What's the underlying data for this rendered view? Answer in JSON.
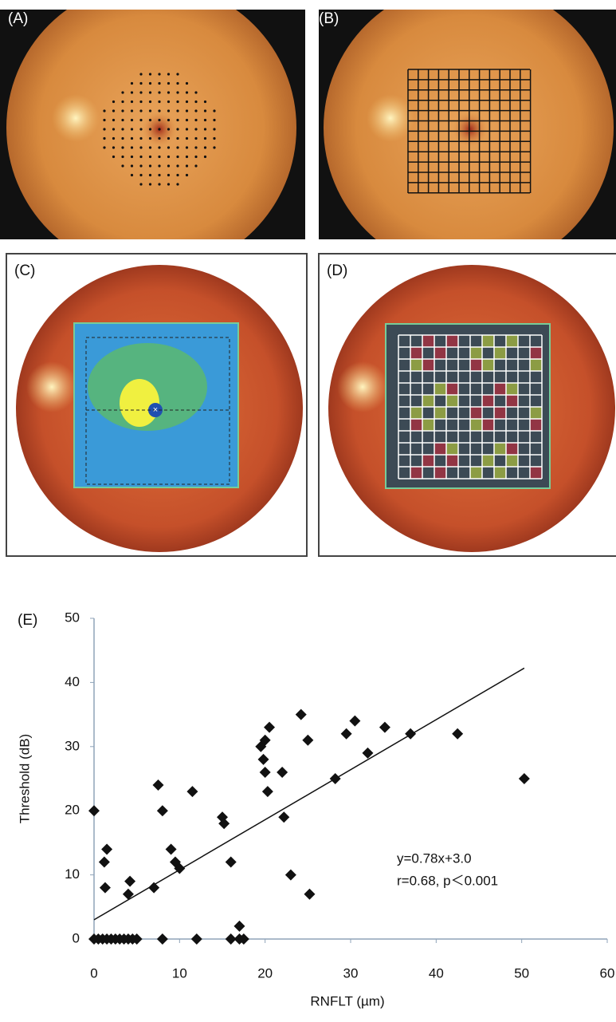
{
  "panel_labels": [
    "(A)",
    "(B)",
    "(C)",
    "(D)"
  ],
  "chart_data": {
    "type": "scatter",
    "panel_label": "(E)",
    "xlabel": "RNFLT (µm)",
    "ylabel": "Threshold (dB)",
    "x": [
      0,
      0,
      0.5,
      1,
      1.5,
      2,
      2.5,
      3,
      3.5,
      4,
      4.5,
      5,
      1.2,
      1.5,
      1.3,
      4,
      4.2,
      7,
      7.5,
      8,
      8,
      9,
      9.5,
      10,
      11.5,
      12,
      15,
      15.2,
      16,
      16,
      17,
      17,
      17.5,
      19.5,
      19.8,
      20,
      20,
      20.3,
      20.5,
      22,
      22.2,
      23,
      24.2,
      25,
      25.2,
      28.2,
      29.5,
      30.5,
      32,
      34,
      37,
      42.5,
      50.3
    ],
    "values": [
      20,
      0,
      0,
      0,
      0,
      0,
      0,
      0,
      0,
      0,
      0,
      0,
      12,
      14,
      8,
      7,
      9,
      8,
      24,
      20,
      0,
      14,
      12,
      11,
      23,
      0,
      19,
      18,
      12,
      0,
      0,
      2,
      0,
      30,
      28,
      26,
      31,
      23,
      33,
      26,
      19,
      10,
      35,
      31,
      7,
      25,
      32,
      34,
      29,
      33,
      32,
      32,
      25
    ],
    "color": "#111111",
    "xlim": [
      0,
      60
    ],
    "ylim": [
      0,
      50
    ],
    "xticks": [
      0,
      10,
      20,
      30,
      40,
      50,
      60
    ],
    "yticks": [
      0,
      10,
      20,
      30,
      40,
      50
    ],
    "annotations": [
      "y=0.78x+3.0",
      "r=0.68, p＜0.001"
    ],
    "fit": {
      "slope": 0.78,
      "intercept": 3.0
    }
  }
}
